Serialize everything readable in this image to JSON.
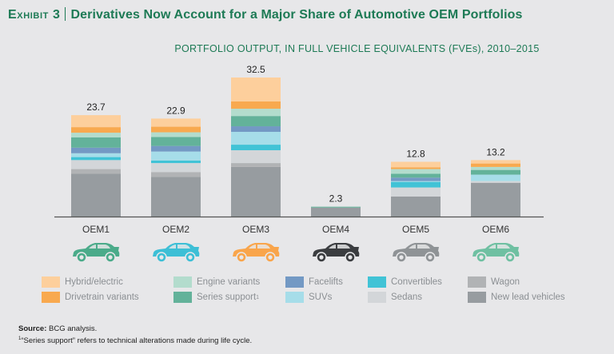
{
  "header": {
    "exhibit_label": "Exhibit 3",
    "title": "Derivatives Now Account for a Major Share of Automotive OEM Portfolios"
  },
  "chart_data": {
    "type": "bar",
    "stacked": true,
    "title": "PORTFOLIO OUTPUT, IN FULL VEHICLE EQUIVALENTS (FVEs), 2010–2015",
    "xlabel": "",
    "ylabel": "",
    "ylim": [
      0,
      33
    ],
    "grid": false,
    "legend_position": "bottom",
    "categories": [
      "OEM1",
      "OEM2",
      "OEM3",
      "OEM4",
      "OEM5",
      "OEM6"
    ],
    "totals": [
      "23.7",
      "22.9",
      "32.5",
      "2.3",
      "12.8",
      "13.2"
    ],
    "series": [
      {
        "name": "New lead vehicles",
        "color": "#979ca0",
        "values": [
          10.0,
          9.3,
          11.6,
          2.1,
          4.7,
          7.9
        ]
      },
      {
        "name": "Wagon",
        "color": "#b1b3b5",
        "values": [
          1.1,
          1.1,
          0.9,
          0,
          0,
          0
        ]
      },
      {
        "name": "Sedans",
        "color": "#d3d6d9",
        "values": [
          2.1,
          2.1,
          3.0,
          0,
          2.1,
          0.4
        ]
      },
      {
        "name": "Convertibles",
        "color": "#41c3d6",
        "values": [
          0.7,
          0.6,
          1.3,
          0,
          1.3,
          0
        ]
      },
      {
        "name": "SUVs",
        "color": "#a6dde9",
        "values": [
          0.9,
          2.1,
          3.0,
          0,
          0.2,
          1.5
        ]
      },
      {
        "name": "Facelifts",
        "color": "#7399c4",
        "values": [
          1.3,
          1.3,
          1.3,
          0,
          0.8,
          0
        ]
      },
      {
        "name": "Series support",
        "footnote_marker": "1",
        "color": "#63b29a",
        "values": [
          2.4,
          2.1,
          2.4,
          0.2,
          0.9,
          1.1
        ]
      },
      {
        "name": "Engine variants",
        "color": "#b3dccd",
        "values": [
          1.1,
          1.1,
          1.7,
          0,
          1.1,
          0.7
        ]
      },
      {
        "name": "Drivetrain variants",
        "color": "#f8a94f",
        "values": [
          1.3,
          1.3,
          1.7,
          0,
          0.4,
          0.8
        ]
      },
      {
        "name": "Hybrid/electric",
        "color": "#fdcf9c",
        "values": [
          2.8,
          1.9,
          5.6,
          0,
          1.3,
          0.8
        ]
      }
    ],
    "car_icon_colors": [
      "#4bab8a",
      "#3dbfd6",
      "#f9a54b",
      "#3b3d40",
      "#8f9396",
      "#6fc0a2"
    ]
  },
  "legend": {
    "rows": [
      [
        "Hybrid/electric",
        "Engine variants",
        "Facelifts",
        "Convertibles",
        "Wagon"
      ],
      [
        "Drivetrain variants",
        "Series support",
        "SUVs",
        "Sedans",
        "New lead vehicles"
      ]
    ],
    "series_support_marker": "1"
  },
  "footer": {
    "source_label": "Source:",
    "source_text": "BCG analysis.",
    "footnote_marker": "1",
    "footnote_text": "“Series support” refers to technical alterations made during life cycle."
  }
}
